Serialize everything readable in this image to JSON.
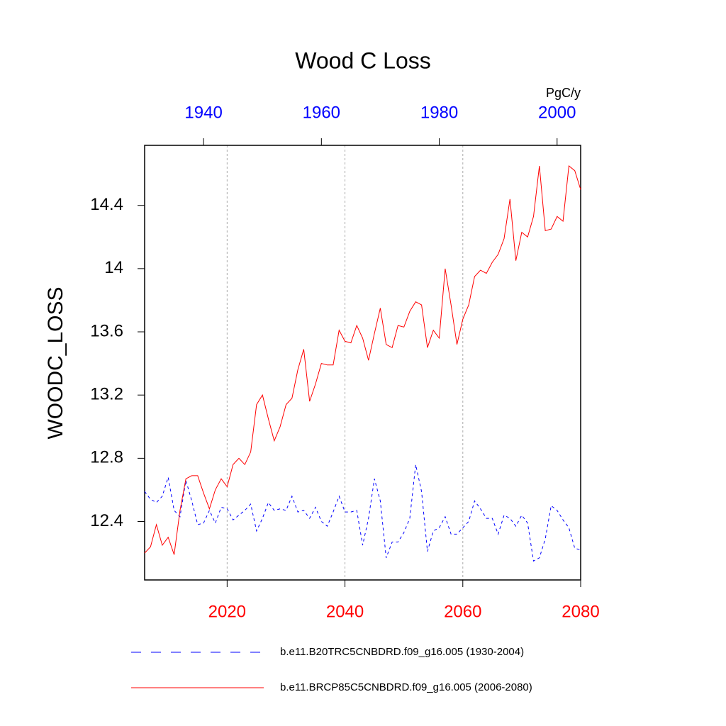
{
  "chart_data": {
    "type": "line",
    "title": "Wood C Loss",
    "units": "PgC/y",
    "ylabel": "WOODC_LOSS",
    "xlim": [
      2006,
      2080
    ],
    "xticks": [
      2020,
      2040,
      2060,
      2080
    ],
    "xtick_color": "#ff0000",
    "x2lim": [
      1930,
      2004
    ],
    "x2ticks": [
      1940,
      1960,
      1980,
      2000
    ],
    "x2tick_color": "#0000ff",
    "ylim": [
      12.03,
      14.78
    ],
    "yticks": [
      12.4,
      12.8,
      13.2,
      13.6,
      14.0,
      14.4
    ],
    "xgrid": true,
    "series": [
      {
        "name": "b.e11.B20TRC5CNBDRD.f09_g16.005 (1930-2004)",
        "color": "#0000ff",
        "dash": true,
        "xaxis": "x2",
        "x": [
          1930,
          1931,
          1932,
          1933,
          1934,
          1935,
          1936,
          1937,
          1938,
          1939,
          1940,
          1941,
          1942,
          1943,
          1944,
          1945,
          1946,
          1947,
          1948,
          1949,
          1950,
          1951,
          1952,
          1953,
          1954,
          1955,
          1956,
          1957,
          1958,
          1959,
          1960,
          1961,
          1962,
          1963,
          1964,
          1965,
          1966,
          1967,
          1968,
          1969,
          1970,
          1971,
          1972,
          1973,
          1974,
          1975,
          1976,
          1977,
          1978,
          1979,
          1980,
          1981,
          1982,
          1983,
          1984,
          1985,
          1986,
          1987,
          1988,
          1989,
          1990,
          1991,
          1992,
          1993,
          1994,
          1995,
          1996,
          1997,
          1998,
          1999,
          2000,
          2001,
          2002,
          2003,
          2004
        ],
        "values": [
          12.59,
          12.54,
          12.52,
          12.56,
          12.68,
          12.47,
          12.43,
          12.66,
          12.53,
          12.38,
          12.39,
          12.47,
          12.39,
          12.49,
          12.48,
          12.41,
          12.44,
          12.47,
          12.51,
          12.34,
          12.42,
          12.52,
          12.47,
          12.48,
          12.47,
          12.56,
          12.46,
          12.47,
          12.42,
          12.49,
          12.4,
          12.37,
          12.46,
          12.56,
          12.46,
          12.46,
          12.47,
          12.25,
          12.42,
          12.67,
          12.53,
          12.17,
          12.27,
          12.27,
          12.33,
          12.42,
          12.76,
          12.59,
          12.21,
          12.34,
          12.36,
          12.43,
          12.32,
          12.32,
          12.36,
          12.4,
          12.53,
          12.48,
          12.42,
          12.42,
          12.32,
          12.44,
          12.42,
          12.37,
          12.44,
          12.39,
          12.15,
          12.17,
          12.29,
          12.5,
          12.47,
          12.41,
          12.36,
          12.23,
          12.22
        ]
      },
      {
        "name": "b.e11.BRCP85C5CNBDRD.f09_g16.005 (2006-2080)",
        "color": "#ff0000",
        "dash": false,
        "xaxis": "x",
        "x": [
          2006,
          2007,
          2008,
          2009,
          2010,
          2011,
          2012,
          2013,
          2014,
          2015,
          2016,
          2017,
          2018,
          2019,
          2020,
          2021,
          2022,
          2023,
          2024,
          2025,
          2026,
          2027,
          2028,
          2029,
          2030,
          2031,
          2032,
          2033,
          2034,
          2035,
          2036,
          2037,
          2038,
          2039,
          2040,
          2041,
          2042,
          2043,
          2044,
          2045,
          2046,
          2047,
          2048,
          2049,
          2050,
          2051,
          2052,
          2053,
          2054,
          2055,
          2056,
          2057,
          2058,
          2059,
          2060,
          2061,
          2062,
          2063,
          2064,
          2065,
          2066,
          2067,
          2068,
          2069,
          2070,
          2071,
          2072,
          2073,
          2074,
          2075,
          2076,
          2077,
          2078,
          2079,
          2080
        ],
        "values": [
          12.2,
          12.24,
          12.38,
          12.25,
          12.3,
          12.19,
          12.47,
          12.67,
          12.69,
          12.69,
          12.58,
          12.48,
          12.6,
          12.67,
          12.62,
          12.76,
          12.8,
          12.76,
          12.84,
          13.14,
          13.2,
          13.05,
          12.91,
          13.0,
          13.14,
          13.18,
          13.36,
          13.49,
          13.16,
          13.27,
          13.4,
          13.39,
          13.39,
          13.61,
          13.54,
          13.53,
          13.64,
          13.56,
          13.42,
          13.59,
          13.75,
          13.52,
          13.5,
          13.64,
          13.63,
          13.73,
          13.79,
          13.77,
          13.5,
          13.61,
          13.56,
          14.0,
          13.77,
          13.52,
          13.68,
          13.77,
          13.95,
          13.99,
          13.97,
          14.04,
          14.09,
          14.19,
          14.44,
          14.05,
          14.23,
          14.2,
          14.33,
          14.65,
          14.24,
          14.25,
          14.33,
          14.3,
          14.65,
          14.62,
          14.5
        ]
      }
    ]
  }
}
